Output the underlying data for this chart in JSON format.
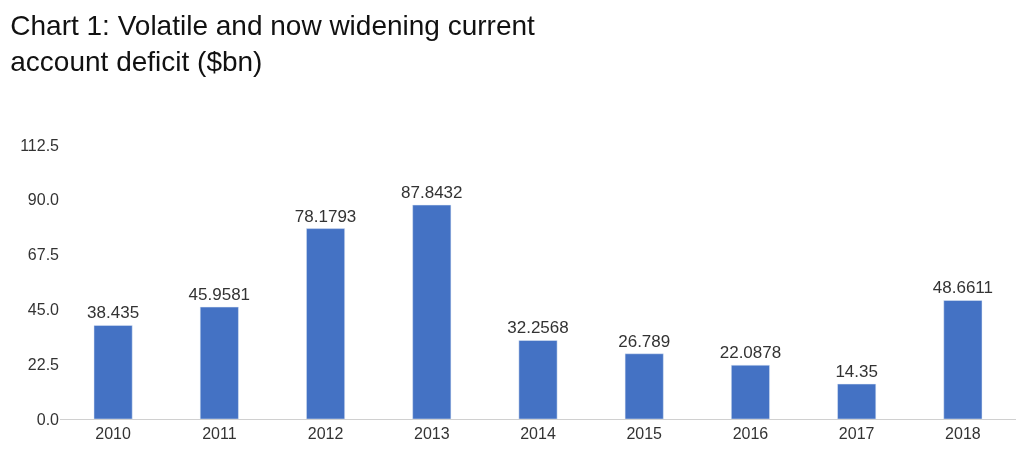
{
  "chart_data": {
    "type": "bar",
    "title": "Chart 1: Volatile and now widening current account deficit ($bn)",
    "categories": [
      "2010",
      "2011",
      "2012",
      "2013",
      "2014",
      "2015",
      "2016",
      "2017",
      "2018"
    ],
    "values": [
      38.435,
      45.9581,
      78.1793,
      87.8432,
      32.2568,
      26.789,
      22.0878,
      14.35,
      48.6611
    ],
    "color": "#4472c4",
    "ylim": [
      0,
      112.5
    ],
    "yticks": [
      {
        "value": 0,
        "label": "0.0"
      },
      22.5,
      {
        "value": 45,
        "label": "45.0"
      },
      67.5,
      {
        "value": 90,
        "label": "90.0"
      },
      112.5
    ],
    "data_labels": true
  }
}
